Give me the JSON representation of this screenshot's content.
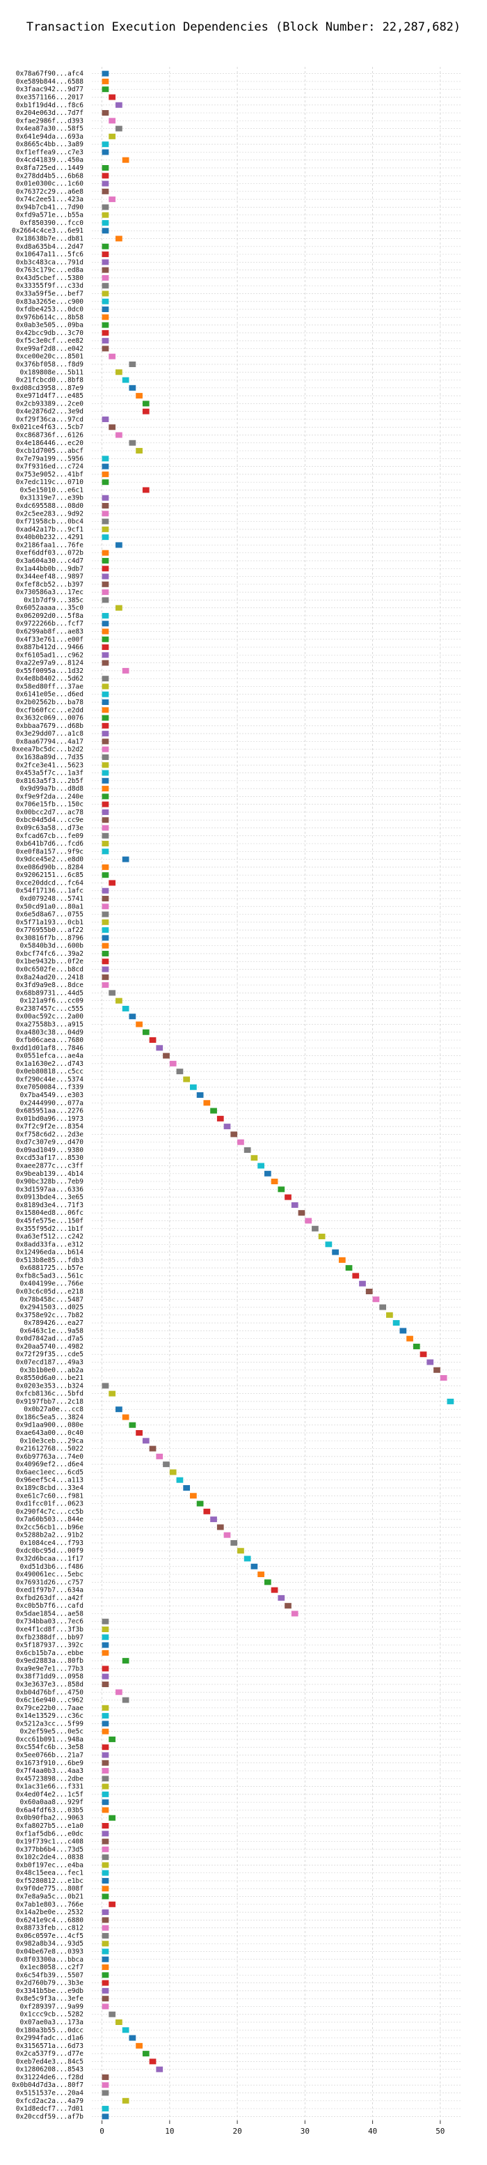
{
  "chart_data": {
    "type": "bar",
    "title": "Transaction Execution Dependencies (Block Number: 22,287,682)",
    "x_ticks": [
      0,
      10,
      20,
      30,
      40,
      50
    ],
    "xlim": [
      -1.5,
      53
    ],
    "grid": true,
    "bar_duration": 1,
    "palette": [
      "#1f77b4",
      "#ff7f0e",
      "#2ca02c",
      "#d62728",
      "#9467bd",
      "#8c564b",
      "#e377c2",
      "#7f7f7f",
      "#bcbd22",
      "#17becf"
    ],
    "transactions": [
      {
        "label": "0x78a67f90...afc4",
        "start": 0
      },
      {
        "label": "0xe589b844...6588",
        "start": 0
      },
      {
        "label": "0x3faac942...9d77",
        "start": 0
      },
      {
        "label": "0xe3571166...2017",
        "start": 1
      },
      {
        "label": "0xb1f19d4d...f8c6",
        "start": 2
      },
      {
        "label": "0x204e063d...7d7f",
        "start": 0
      },
      {
        "label": "0xfae2986f...d393",
        "start": 1
      },
      {
        "label": "0x4ea87a30...58f5",
        "start": 2
      },
      {
        "label": "0x641e94da...693a",
        "start": 1
      },
      {
        "label": "0x8665c4bb...3a89",
        "start": 0
      },
      {
        "label": "0xf1effea9...c7e3",
        "start": 0
      },
      {
        "label": "0x4cd41839...450a",
        "start": 3
      },
      {
        "label": "0x8fa725ed...1449",
        "start": 0
      },
      {
        "label": "0x278dd4b5...6b68",
        "start": 0
      },
      {
        "label": "0x01e0300c...1c60",
        "start": 0
      },
      {
        "label": "0x76372c29...a6e8",
        "start": 0
      },
      {
        "label": "0x74c2ee51...423a",
        "start": 1
      },
      {
        "label": "0x94b7cb41...7d90",
        "start": 0
      },
      {
        "label": "0xfd9a571e...b55a",
        "start": 0
      },
      {
        "label": "0xf850390...fcc0",
        "start": 0
      },
      {
        "label": "0x2664c4ce3...6e91",
        "start": 0
      },
      {
        "label": "0x18638b7e...db81",
        "start": 2
      },
      {
        "label": "0xd8a635b4...2d47",
        "start": 0
      },
      {
        "label": "0x10647a11...5fc6",
        "start": 0
      },
      {
        "label": "0xb3c483ca...791d",
        "start": 0
      },
      {
        "label": "0x763c179c...ed8a",
        "start": 0
      },
      {
        "label": "0x43d5cbef...5380",
        "start": 0
      },
      {
        "label": "0x33355f9f...c33d",
        "start": 0
      },
      {
        "label": "0x33a59f5e...bef7",
        "start": 0
      },
      {
        "label": "0x83a3265e...c900",
        "start": 0
      },
      {
        "label": "0xfdbe4253...0dc0",
        "start": 0
      },
      {
        "label": "0x976b614c...8b58",
        "start": 0
      },
      {
        "label": "0x0ab3e505...09ba",
        "start": 0
      },
      {
        "label": "0x42bcc9db...3c70",
        "start": 0
      },
      {
        "label": "0xf5c3e0cf...ee82",
        "start": 0
      },
      {
        "label": "0xe99af2d8...e042",
        "start": 0
      },
      {
        "label": "0xce00e20c...8501",
        "start": 1
      },
      {
        "label": "0x376bf058...f8d9",
        "start": 4
      },
      {
        "label": "0x189808e...5b11",
        "start": 2
      },
      {
        "label": "0x21fcbcd0...8bf8",
        "start": 3
      },
      {
        "label": "0xd08cd3958...87e9",
        "start": 4
      },
      {
        "label": "0xe971d4f7...e485",
        "start": 5
      },
      {
        "label": "0x2cb93389...2ce0",
        "start": 6
      },
      {
        "label": "0x4e2876d2...3e9d",
        "start": 6
      },
      {
        "label": "0xf29f36ca...97cd",
        "start": 0
      },
      {
        "label": "0x021ce4f63...5cb7",
        "start": 1
      },
      {
        "label": "0xc868736f...6126",
        "start": 2
      },
      {
        "label": "0x4e186446...ec20",
        "start": 4
      },
      {
        "label": "0xcb1d7005...abcf",
        "start": 5
      },
      {
        "label": "0x7e79a199...5956",
        "start": 0
      },
      {
        "label": "0x7f9316ed...c724",
        "start": 0
      },
      {
        "label": "0x753e9052...41bf",
        "start": 0
      },
      {
        "label": "0x7edc119c...0710",
        "start": 0
      },
      {
        "label": "0x5e15010...e6c1",
        "start": 6
      },
      {
        "label": "0x31319e7...e39b",
        "start": 0
      },
      {
        "label": "0xdc695588...08d0",
        "start": 0
      },
      {
        "label": "0x2c5ee283...9d92",
        "start": 0
      },
      {
        "label": "0xf71958cb...0bc4",
        "start": 0
      },
      {
        "label": "0xad42a17b...9cf1",
        "start": 0
      },
      {
        "label": "0x40b0b232...4291",
        "start": 0
      },
      {
        "label": "0x2186faa1...76fe",
        "start": 2
      },
      {
        "label": "0xef6ddf03...072b",
        "start": 0
      },
      {
        "label": "0x3a604a30...c4d7",
        "start": 0
      },
      {
        "label": "0x1a44bb0b...9db7",
        "start": 0
      },
      {
        "label": "0x344eef48...9897",
        "start": 0
      },
      {
        "label": "0xfef8cb52...b397",
        "start": 0
      },
      {
        "label": "0x730586a3...17ec",
        "start": 0
      },
      {
        "label": "0x1b7df9...385c",
        "start": 0
      },
      {
        "label": "0x6052aaaa...35c0",
        "start": 2
      },
      {
        "label": "0x062092d0...5f8a",
        "start": 0
      },
      {
        "label": "0x9722266b...fcf7",
        "start": 0
      },
      {
        "label": "0x6299ab8f...ae83",
        "start": 0
      },
      {
        "label": "0x4f33e761...e00f",
        "start": 0
      },
      {
        "label": "0x887b412d...9466",
        "start": 0
      },
      {
        "label": "0xf6105ad1...c962",
        "start": 0
      },
      {
        "label": "0xa22e97a9...8124",
        "start": 0
      },
      {
        "label": "0x55f0095a...1d32",
        "start": 3
      },
      {
        "label": "0x4e8b8402...5d62",
        "start": 0
      },
      {
        "label": "0x58ed80ff...37ae",
        "start": 0
      },
      {
        "label": "0x6141e05e...d6ed",
        "start": 0
      },
      {
        "label": "0x2b02562b...ba78",
        "start": 0
      },
      {
        "label": "0xcfb60fcc...e2dd",
        "start": 0
      },
      {
        "label": "0x3632c069...0076",
        "start": 0
      },
      {
        "label": "0xbbaa7679...d68b",
        "start": 0
      },
      {
        "label": "0x3e29dd07...a1c8",
        "start": 0
      },
      {
        "label": "0x8aa67794...4a17",
        "start": 0
      },
      {
        "label": "0xeea7bc5dc...b2d2",
        "start": 0
      },
      {
        "label": "0x1638a89d...7d35",
        "start": 0
      },
      {
        "label": "0x2fce3e41...5623",
        "start": 0
      },
      {
        "label": "0x453a5f7c...1a3f",
        "start": 0
      },
      {
        "label": "0x8163a5f3...2b5f",
        "start": 0
      },
      {
        "label": "0x9d99a7b...d8d8",
        "start": 0
      },
      {
        "label": "0xf9e9f2da...240e",
        "start": 0
      },
      {
        "label": "0x706e15fb...150c",
        "start": 0
      },
      {
        "label": "0x00bcc2d7...ac78",
        "start": 0
      },
      {
        "label": "0xbc04d5d4...cc9e",
        "start": 0
      },
      {
        "label": "0x09c63a58...d73e",
        "start": 0
      },
      {
        "label": "0xfcad67cb...fe09",
        "start": 0
      },
      {
        "label": "0xb641b7d6...fcd6",
        "start": 0
      },
      {
        "label": "0xe0f8a157...9f9c",
        "start": 0
      },
      {
        "label": "0x9dce45e2...e8d0",
        "start": 3
      },
      {
        "label": "0xe086d90b...8284",
        "start": 0
      },
      {
        "label": "0x92062151...6c85",
        "start": 0
      },
      {
        "label": "0xce20ddcd...fc64",
        "start": 1
      },
      {
        "label": "0x54f17136...1afc",
        "start": 0
      },
      {
        "label": "0xd079248...5741",
        "start": 0
      },
      {
        "label": "0x50cd91a0...80a1",
        "start": 0
      },
      {
        "label": "0x6e5d8a67...0755",
        "start": 0
      },
      {
        "label": "0x5f71a193...0cb1",
        "start": 0
      },
      {
        "label": "0x776955b0...af22",
        "start": 0
      },
      {
        "label": "0x30816f7b...8796",
        "start": 0
      },
      {
        "label": "0x5840b3d...600b",
        "start": 0
      },
      {
        "label": "0xbcf74fc6...39a2",
        "start": 0
      },
      {
        "label": "0x1be9432b...0f2e",
        "start": 0
      },
      {
        "label": "0x0c6502fe...b8cd",
        "start": 0
      },
      {
        "label": "0x8a24ad20...2418",
        "start": 0
      },
      {
        "label": "0x3fd9a9e8...8dce",
        "start": 0
      },
      {
        "label": "0x68b89731...44d5",
        "start": 1
      },
      {
        "label": "0x121a9f6...cc09",
        "start": 2
      },
      {
        "label": "0x2387457c...c555",
        "start": 3
      },
      {
        "label": "0x00ac592c...2a00",
        "start": 4
      },
      {
        "label": "0xa27558b3...a915",
        "start": 5
      },
      {
        "label": "0xa4803c38...04d9",
        "start": 6
      },
      {
        "label": "0xfb06caea...7680",
        "start": 7
      },
      {
        "label": "0xdd1d01af8...7846",
        "start": 8
      },
      {
        "label": "0x0551efca...ae4a",
        "start": 9
      },
      {
        "label": "0x1a1630e2...d743",
        "start": 10
      },
      {
        "label": "0x0eb80818...c5cc",
        "start": 11
      },
      {
        "label": "0xf290c44e...5374",
        "start": 12
      },
      {
        "label": "0xe7050084...f339",
        "start": 13
      },
      {
        "label": "0x7ba4549...e303",
        "start": 14
      },
      {
        "label": "0x2444990...077a",
        "start": 15
      },
      {
        "label": "0x685951aa...2276",
        "start": 16
      },
      {
        "label": "0x01bd0a96...1973",
        "start": 17
      },
      {
        "label": "0x7f2c9f2e...8354",
        "start": 18
      },
      {
        "label": "0xf758c6d2...2d3e",
        "start": 19
      },
      {
        "label": "0xd7c307e9...d470",
        "start": 20
      },
      {
        "label": "0x09ad1049...9380",
        "start": 21
      },
      {
        "label": "0xcd53af17...8530",
        "start": 22
      },
      {
        "label": "0xaee2877c...c3ff",
        "start": 23
      },
      {
        "label": "0x9beab139...4b14",
        "start": 24
      },
      {
        "label": "0x90bc328b...7eb9",
        "start": 25
      },
      {
        "label": "0x3d1597aa...6336",
        "start": 26
      },
      {
        "label": "0x0913bde4...3e65",
        "start": 27
      },
      {
        "label": "0x8189d3e4...71f3",
        "start": 28
      },
      {
        "label": "0x15804ed8...06fc",
        "start": 29
      },
      {
        "label": "0x45fe575e...150f",
        "start": 30
      },
      {
        "label": "0x355f95d2...1b1f",
        "start": 31
      },
      {
        "label": "0xa63ef512...c242",
        "start": 32
      },
      {
        "label": "0x8add33fa...e312",
        "start": 33
      },
      {
        "label": "0x12496eda...b614",
        "start": 34
      },
      {
        "label": "0x513b8e85...fdb3",
        "start": 35
      },
      {
        "label": "0x6881725...b57e",
        "start": 36
      },
      {
        "label": "0xfb8c5ad3...561c",
        "start": 37
      },
      {
        "label": "0x404199e...766e",
        "start": 38
      },
      {
        "label": "0x03c6c05d...e218",
        "start": 39
      },
      {
        "label": "0x78b458c...5487",
        "start": 40
      },
      {
        "label": "0x2941503...d025",
        "start": 41
      },
      {
        "label": "0x3758e92c...7b82",
        "start": 42
      },
      {
        "label": "0x789426...ea27",
        "start": 43
      },
      {
        "label": "0x6463c1e...9a58",
        "start": 44
      },
      {
        "label": "0x0d7842ad...d7a5",
        "start": 45
      },
      {
        "label": "0x20aa5740...4982",
        "start": 46
      },
      {
        "label": "0x72f29f35...cde5",
        "start": 47
      },
      {
        "label": "0x07ecd187...49a3",
        "start": 48
      },
      {
        "label": "0x3b1b0e0...ab2a",
        "start": 49
      },
      {
        "label": "0x8550d6a0...be21",
        "start": 50
      },
      {
        "label": "0x0203e353...b324",
        "start": 0
      },
      {
        "label": "0xfcb8136c...5bfd",
        "start": 1
      },
      {
        "label": "0x9197fbb7...2c18",
        "start": 51
      },
      {
        "label": "0x0b27a0e...cc8",
        "start": 2
      },
      {
        "label": "0x186c5ea5...3824",
        "start": 3
      },
      {
        "label": "0x9d1aa900...080e",
        "start": 4
      },
      {
        "label": "0xae643a00...0c40",
        "start": 5
      },
      {
        "label": "0x10e3ceb...29ca",
        "start": 6
      },
      {
        "label": "0x21612768...5022",
        "start": 7
      },
      {
        "label": "0x6b97763a...74e0",
        "start": 8
      },
      {
        "label": "0x40969ef2...d6e4",
        "start": 9
      },
      {
        "label": "0x6aec1eec...6cd5",
        "start": 10
      },
      {
        "label": "0x96eef5c4...a113",
        "start": 11
      },
      {
        "label": "0x189c8cbd...33e4",
        "start": 12
      },
      {
        "label": "0xe61c7c60...f981",
        "start": 13
      },
      {
        "label": "0xd1fcc01f...0623",
        "start": 14
      },
      {
        "label": "0x290f4c7c...cc5b",
        "start": 15
      },
      {
        "label": "0x7a60b503...844e",
        "start": 16
      },
      {
        "label": "0x2cc56cb1...b96e",
        "start": 17
      },
      {
        "label": "0x5288b2a2...91b2",
        "start": 18
      },
      {
        "label": "0x1084ce4...f793",
        "start": 19
      },
      {
        "label": "0xdc0bc95d...00f9",
        "start": 20
      },
      {
        "label": "0x32d6bcaa...1f17",
        "start": 21
      },
      {
        "label": "0xd51d3b6...f486",
        "start": 22
      },
      {
        "label": "0x490061ec...5ebc",
        "start": 23
      },
      {
        "label": "0x76931d26...c757",
        "start": 24
      },
      {
        "label": "0xed1f97b7...634a",
        "start": 25
      },
      {
        "label": "0xfbd263df...a42f",
        "start": 26
      },
      {
        "label": "0xc0b5b7f6...cafd",
        "start": 27
      },
      {
        "label": "0x5dae1854...ae58",
        "start": 28
      },
      {
        "label": "0x734bba03...7ec6",
        "start": 0
      },
      {
        "label": "0xe4f1cd8f...3f3b",
        "start": 0
      },
      {
        "label": "0xfb2388df...bb97",
        "start": 0
      },
      {
        "label": "0x5f187937...392c",
        "start": 0
      },
      {
        "label": "0x6cb15b7a...ebbe",
        "start": 0
      },
      {
        "label": "0x9ed2883a...80fb",
        "start": 3
      },
      {
        "label": "0xa9e9e7e1...77b3",
        "start": 0
      },
      {
        "label": "0x38f71dd9...0958",
        "start": 0
      },
      {
        "label": "0x3e3637e3...858d",
        "start": 0
      },
      {
        "label": "0xb04d76bf...4750",
        "start": 2
      },
      {
        "label": "0x6c16e940...c962",
        "start": 3
      },
      {
        "label": "0x79ce22b0...7aae",
        "start": 0
      },
      {
        "label": "0x14e13529...c36c",
        "start": 0
      },
      {
        "label": "0x5212a3cc...5f99",
        "start": 0
      },
      {
        "label": "0x2ef59e5...0e5c",
        "start": 0
      },
      {
        "label": "0xcc61b091...948a",
        "start": 1
      },
      {
        "label": "0xc554fc6b...3e58",
        "start": 0
      },
      {
        "label": "0x5ee0766b...21a7",
        "start": 0
      },
      {
        "label": "0x1673f910...6be9",
        "start": 0
      },
      {
        "label": "0x7f4aa0b3...4aa3",
        "start": 0
      },
      {
        "label": "0x45723898...2dbe",
        "start": 0
      },
      {
        "label": "0x1ac31e66...f331",
        "start": 0
      },
      {
        "label": "0x4ed0f4e2...1c5f",
        "start": 0
      },
      {
        "label": "0x60a0aa8...929f",
        "start": 0
      },
      {
        "label": "0x6a4fdf63...03b5",
        "start": 0
      },
      {
        "label": "0x0b90fba2...9063",
        "start": 1
      },
      {
        "label": "0xfa8027b5...e1a0",
        "start": 0
      },
      {
        "label": "0xf1af5db6...e0dc",
        "start": 0
      },
      {
        "label": "0x19f739c1...c408",
        "start": 0
      },
      {
        "label": "0x377bb6b4...73d5",
        "start": 0
      },
      {
        "label": "0x102c2de4...0838",
        "start": 0
      },
      {
        "label": "0xb0f197ec...e4ba",
        "start": 0
      },
      {
        "label": "0x48c15eea...fec1",
        "start": 0
      },
      {
        "label": "0xf5280812...e1bc",
        "start": 0
      },
      {
        "label": "0x9f0de775...808f",
        "start": 0
      },
      {
        "label": "0x7e8a9a5c...0b21",
        "start": 0
      },
      {
        "label": "0x7ab1e803...766e",
        "start": 1
      },
      {
        "label": "0x14a2be0e...2532",
        "start": 0
      },
      {
        "label": "0x6241e9c4...6880",
        "start": 0
      },
      {
        "label": "0x88733feb...c812",
        "start": 0
      },
      {
        "label": "0x06c0597e...4cf5",
        "start": 0
      },
      {
        "label": "0x982a8b34...93d5",
        "start": 0
      },
      {
        "label": "0x04be67e8...0393",
        "start": 0
      },
      {
        "label": "0x8f03300a...bbca",
        "start": 0
      },
      {
        "label": "0x1ec8058...c2f7",
        "start": 0
      },
      {
        "label": "0x6c54fb39...5507",
        "start": 0
      },
      {
        "label": "0x2d760b79...3b3e",
        "start": 0
      },
      {
        "label": "0x3341b5be...e9db",
        "start": 0
      },
      {
        "label": "0x8e5c9f3a...3efe",
        "start": 0
      },
      {
        "label": "0xf289397...9a99",
        "start": 0
      },
      {
        "label": "0x1ccc9cb...5282",
        "start": 1
      },
      {
        "label": "0x07ae0a3...173a",
        "start": 2
      },
      {
        "label": "0x180a3b55...0dcc",
        "start": 3
      },
      {
        "label": "0x2994fadc...d1a6",
        "start": 4
      },
      {
        "label": "0x3156571a...6d73",
        "start": 5
      },
      {
        "label": "0x2ca537f9...d77e",
        "start": 6
      },
      {
        "label": "0xeb7ed4e3...84c5",
        "start": 7
      },
      {
        "label": "0x12806208...8543",
        "start": 8
      },
      {
        "label": "0x31224de6...f28d",
        "start": 0
      },
      {
        "label": "0x0b04d7d3a...80f7",
        "start": 0
      },
      {
        "label": "0x5151537e...20a4",
        "start": 0
      },
      {
        "label": "0xfcd2ac2a...4a79",
        "start": 3
      },
      {
        "label": "0x1d8edcf7...7d01",
        "start": 0
      },
      {
        "label": "0x20ccdf59...af7b",
        "start": 0
      }
    ]
  }
}
